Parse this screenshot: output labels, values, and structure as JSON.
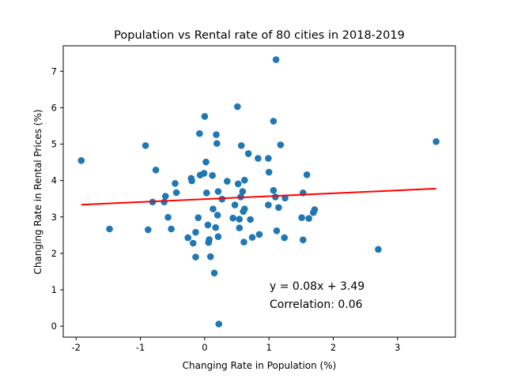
{
  "chart_data": {
    "type": "scatter",
    "title": "Population vs Rental rate of 80 cities in 2018-2019",
    "xlabel": "Changing Rate in Population (%)",
    "ylabel": "Changing Rate in Rental Prices (%)",
    "xlim": [
      -2.2,
      3.9
    ],
    "ylim": [
      -0.3,
      7.7
    ],
    "xticks": [
      -2,
      -1,
      0,
      1,
      2,
      3
    ],
    "yticks": [
      0,
      1,
      2,
      3,
      4,
      5,
      6,
      7
    ],
    "grid": false,
    "point_color": "#1f77b4",
    "line_color": "#ff0000",
    "annotation_color": "#ff0000",
    "fit": {
      "slope": 0.08,
      "intercept": 3.49,
      "x_range": [
        -1.92,
        3.6
      ]
    },
    "annotations": [
      "y = 0.08x + 3.49",
      "Correlation: 0.06"
    ],
    "points": [
      [
        -1.92,
        4.55
      ],
      [
        -1.48,
        2.67
      ],
      [
        -0.92,
        4.96
      ],
      [
        -0.88,
        2.65
      ],
      [
        -0.81,
        3.41
      ],
      [
        -0.76,
        4.29
      ],
      [
        -0.63,
        3.41
      ],
      [
        -0.61,
        3.57
      ],
      [
        -0.57,
        2.99
      ],
      [
        -0.52,
        2.67
      ],
      [
        -0.46,
        3.92
      ],
      [
        -0.44,
        3.67
      ],
      [
        -0.26,
        2.43
      ],
      [
        -0.21,
        4.06
      ],
      [
        -0.2,
        3.99
      ],
      [
        -0.18,
        2.28
      ],
      [
        -0.14,
        2.58
      ],
      [
        -0.14,
        1.9
      ],
      [
        -0.1,
        2.98
      ],
      [
        -0.08,
        5.29
      ],
      [
        -0.07,
        4.15
      ],
      [
        -0.01,
        4.2
      ],
      [
        0.0,
        5.76
      ],
      [
        0.02,
        4.51
      ],
      [
        0.03,
        3.66
      ],
      [
        0.05,
        2.78
      ],
      [
        0.06,
        2.3
      ],
      [
        0.07,
        2.38
      ],
      [
        0.09,
        1.91
      ],
      [
        0.12,
        4.14
      ],
      [
        0.13,
        3.22
      ],
      [
        0.15,
        1.46
      ],
      [
        0.17,
        2.71
      ],
      [
        0.18,
        5.26
      ],
      [
        0.19,
        5.02
      ],
      [
        0.2,
        3.05
      ],
      [
        0.21,
        2.46
      ],
      [
        0.21,
        3.7
      ],
      [
        0.22,
        0.06
      ],
      [
        0.27,
        3.49
      ],
      [
        0.35,
        3.98
      ],
      [
        0.44,
        2.97
      ],
      [
        0.47,
        3.33
      ],
      [
        0.51,
        6.03
      ],
      [
        0.52,
        3.91
      ],
      [
        0.54,
        2.7
      ],
      [
        0.54,
        2.94
      ],
      [
        0.56,
        3.55
      ],
      [
        0.57,
        4.96
      ],
      [
        0.59,
        3.7
      ],
      [
        0.6,
        3.15
      ],
      [
        0.61,
        2.31
      ],
      [
        0.62,
        4.01
      ],
      [
        0.62,
        3.22
      ],
      [
        0.68,
        4.74
      ],
      [
        0.71,
        2.93
      ],
      [
        0.74,
        2.44
      ],
      [
        0.83,
        4.61
      ],
      [
        0.85,
        2.52
      ],
      [
        0.99,
        4.61
      ],
      [
        0.99,
        3.33
      ],
      [
        1.0,
        4.23
      ],
      [
        1.07,
        3.73
      ],
      [
        1.07,
        5.63
      ],
      [
        1.1,
        3.55
      ],
      [
        1.11,
        7.32
      ],
      [
        1.12,
        2.62
      ],
      [
        1.15,
        3.26
      ],
      [
        1.18,
        4.98
      ],
      [
        1.24,
        2.43
      ],
      [
        1.25,
        3.52
      ],
      [
        1.51,
        2.98
      ],
      [
        1.53,
        2.37
      ],
      [
        1.53,
        3.66
      ],
      [
        1.59,
        4.16
      ],
      [
        1.62,
        2.96
      ],
      [
        1.69,
        3.12
      ],
      [
        1.71,
        3.2
      ],
      [
        2.7,
        2.11
      ],
      [
        3.6,
        5.07
      ]
    ]
  }
}
